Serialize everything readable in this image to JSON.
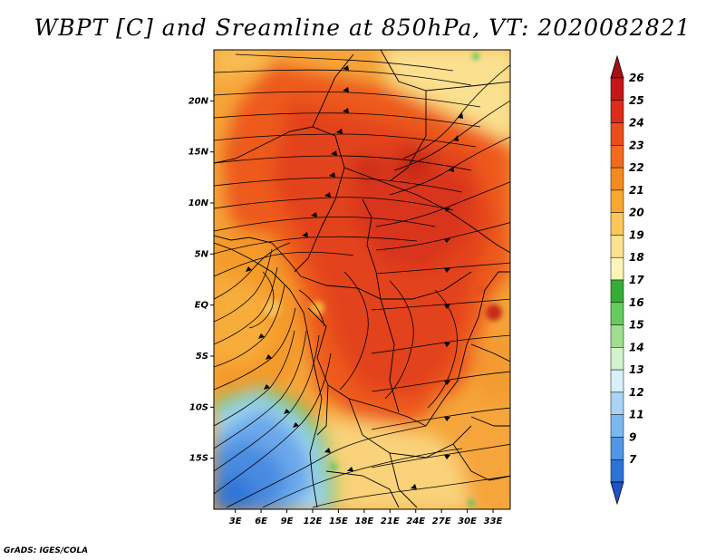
{
  "title": "WBPT [C] and Sreamline at 850hPa, VT: 2020082821",
  "credit": "GrADS: IGES/COLA",
  "map": {
    "lat_labels": [
      "20N",
      "15N",
      "10N",
      "5N",
      "EQ",
      "5S",
      "10S",
      "15S"
    ],
    "lat_values": [
      20,
      15,
      10,
      5,
      0,
      -5,
      -10,
      -15
    ],
    "lon_labels": [
      "3E",
      "6E",
      "9E",
      "12E",
      "15E",
      "18E",
      "21E",
      "24E",
      "27E",
      "30E",
      "33E"
    ],
    "lon_values": [
      3,
      6,
      9,
      12,
      15,
      18,
      21,
      24,
      27,
      30,
      33
    ],
    "lat_range": [
      -20,
      25
    ],
    "lon_range": [
      0.5,
      35
    ]
  },
  "colorbar": {
    "labels": [
      "26",
      "25",
      "24",
      "23",
      "22",
      "21",
      "20",
      "19",
      "18",
      "17",
      "16",
      "15",
      "14",
      "13",
      "12",
      "11",
      "9",
      "7"
    ],
    "colors": [
      "#a50f15",
      "#c41818",
      "#dc2d1a",
      "#ea4d1c",
      "#f06b1e",
      "#f58a1f",
      "#f7a832",
      "#fac85a",
      "#fbe28f",
      "#fdf5b8",
      "#37ad36",
      "#66cc5d",
      "#a0df8d",
      "#d4f2cc",
      "#d7f0fb",
      "#a9d4f6",
      "#7cb8f0",
      "#5296e6",
      "#2c73d8",
      "#1c55c8"
    ]
  }
}
